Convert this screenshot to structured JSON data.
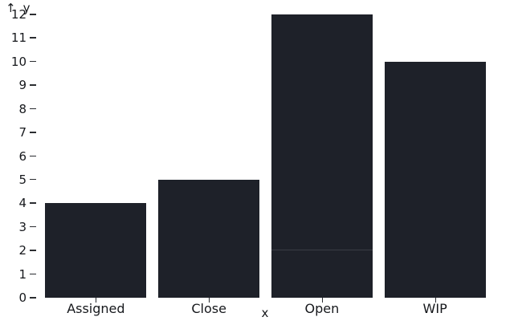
{
  "icons": {
    "up_arrow": "↑"
  },
  "chart_data": {
    "type": "bar",
    "stacked": true,
    "title": "",
    "categories": [
      "Assigned",
      "Close",
      "Open",
      "WIP"
    ],
    "bars": [
      {
        "category": "Assigned",
        "segments": [
          4
        ],
        "total": 4
      },
      {
        "category": "Close",
        "segments": [
          5
        ],
        "total": 5
      },
      {
        "category": "Open",
        "segments": [
          2,
          10
        ],
        "total": 12
      },
      {
        "category": "WIP",
        "segments": [
          10
        ],
        "total": 10
      }
    ],
    "xlabel": "x",
    "ylabel": "y",
    "ylim": [
      0,
      12
    ],
    "y_tick_labels": [
      "0",
      "1",
      "2",
      "3",
      "4",
      "5",
      "6",
      "7",
      "8",
      "9",
      "10",
      "11",
      "12"
    ],
    "grid": false,
    "legend": "none",
    "colors": {
      "bar_fill": "#1e2129",
      "segment_divider": "#3a3d45",
      "axis_text": "#16181c",
      "tick_mark": "#2b2d31",
      "background": "#ffffff"
    }
  }
}
